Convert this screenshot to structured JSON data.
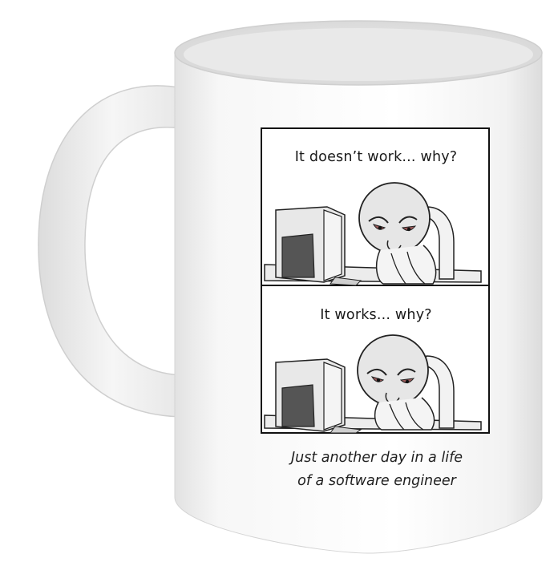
{
  "comic": {
    "panel1_caption": "It doesn’t work... why?",
    "panel2_caption": "It works... why?",
    "footer_line1": "Just another day in a life",
    "footer_line2": "of a software engineer"
  },
  "colors": {
    "mug": "#f4f4f4",
    "ink": "#1a1a1a",
    "monitor": "#5a5a5a"
  }
}
